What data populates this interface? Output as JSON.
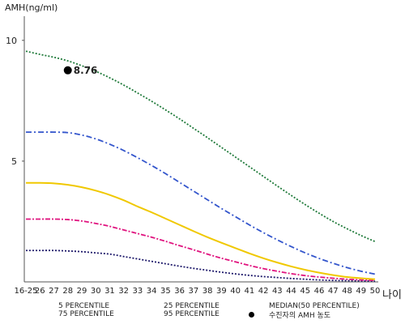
{
  "chart_data": {
    "type": "line",
    "ylabel": "AMH(ng/ml)",
    "xlabel": "나이",
    "ylim": [
      0,
      11
    ],
    "yticks": [
      5,
      10
    ],
    "categories": [
      "16-25",
      "26",
      "27",
      "28",
      "29",
      "30",
      "31",
      "32",
      "33",
      "34",
      "35",
      "36",
      "37",
      "38",
      "39",
      "40",
      "41",
      "42",
      "43",
      "44",
      "45",
      "46",
      "47",
      "48",
      "49",
      "50"
    ],
    "series": [
      {
        "name": "5 PERCENTILE",
        "color": "#1f1a6b",
        "dash": "2,2",
        "values": [
          1.3,
          1.3,
          1.3,
          1.28,
          1.25,
          1.2,
          1.15,
          1.05,
          0.95,
          0.85,
          0.75,
          0.65,
          0.56,
          0.48,
          0.4,
          0.33,
          0.27,
          0.22,
          0.18,
          0.14,
          0.11,
          0.08,
          0.06,
          0.05,
          0.04,
          0.03
        ]
      },
      {
        "name": "25 PERCENTILE",
        "color": "#e0147f",
        "dash": "6,2,2,2",
        "values": [
          2.6,
          2.6,
          2.6,
          2.58,
          2.52,
          2.42,
          2.3,
          2.15,
          2.0,
          1.85,
          1.68,
          1.5,
          1.33,
          1.15,
          0.98,
          0.83,
          0.68,
          0.55,
          0.44,
          0.34,
          0.26,
          0.2,
          0.15,
          0.11,
          0.08,
          0.06
        ]
      },
      {
        "name": "MEDIAN(50 PERCENTILE)",
        "color": "#f0c800",
        "dash": "",
        "values": [
          4.1,
          4.1,
          4.08,
          4.02,
          3.92,
          3.78,
          3.6,
          3.38,
          3.12,
          2.88,
          2.62,
          2.36,
          2.1,
          1.85,
          1.62,
          1.4,
          1.18,
          0.98,
          0.8,
          0.64,
          0.5,
          0.38,
          0.28,
          0.2,
          0.15,
          0.11
        ]
      },
      {
        "name": "75 PERCENTILE",
        "color": "#3355cc",
        "dash": "7,3,2,3",
        "values": [
          6.2,
          6.2,
          6.2,
          6.18,
          6.08,
          5.92,
          5.7,
          5.44,
          5.14,
          4.82,
          4.48,
          4.12,
          3.76,
          3.4,
          3.04,
          2.7,
          2.36,
          2.04,
          1.74,
          1.46,
          1.2,
          0.97,
          0.77,
          0.59,
          0.44,
          0.32
        ]
      },
      {
        "name": "95 PERCENTILE",
        "color": "#1f7a3a",
        "dash": "2,2",
        "values": [
          9.55,
          9.42,
          9.3,
          9.15,
          8.95,
          8.72,
          8.45,
          8.15,
          7.82,
          7.48,
          7.12,
          6.75,
          6.36,
          5.97,
          5.57,
          5.17,
          4.77,
          4.37,
          3.97,
          3.58,
          3.2,
          2.84,
          2.5,
          2.2,
          1.92,
          1.67
        ]
      }
    ],
    "patient_point": {
      "name": "수진자의 AMH 농도",
      "category": "28",
      "value": 8.76,
      "label": "8.76"
    }
  }
}
